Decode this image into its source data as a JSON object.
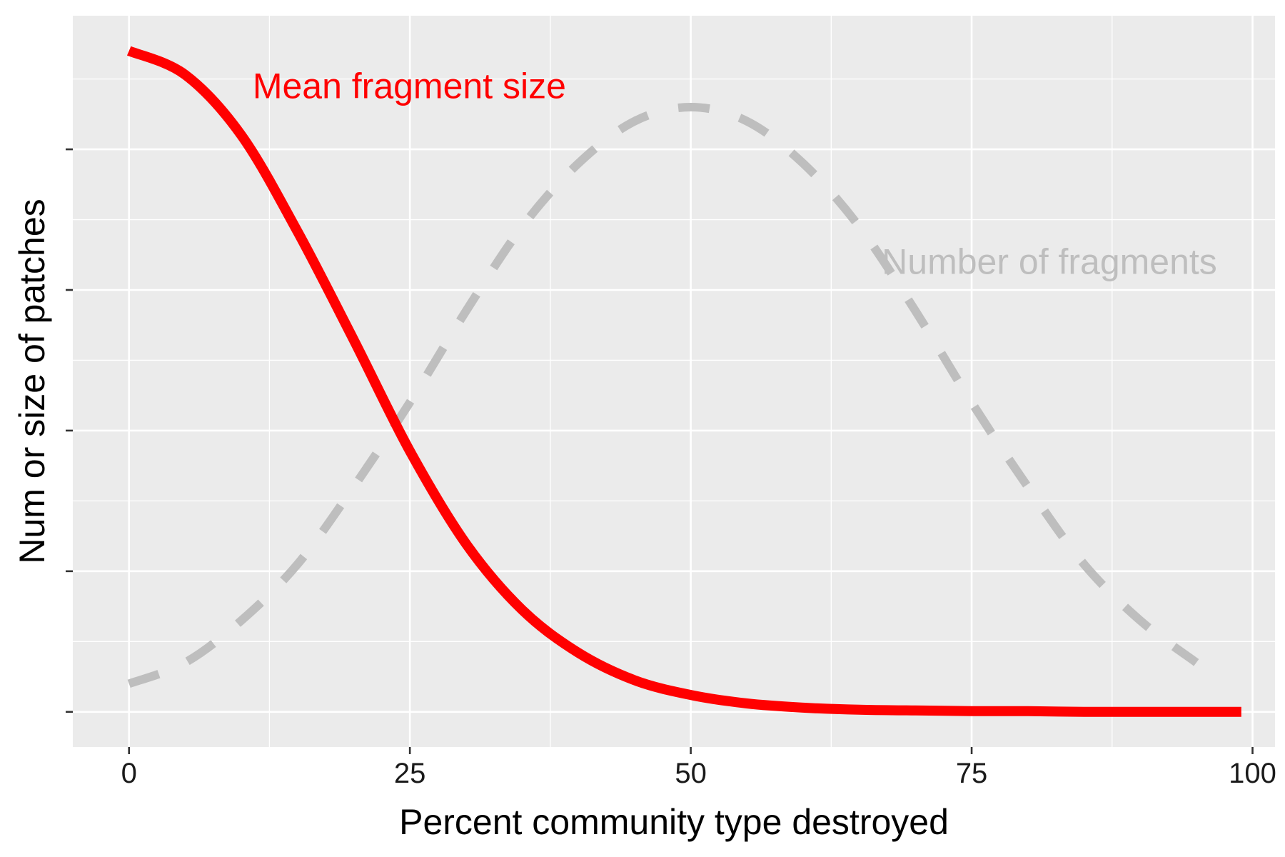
{
  "chart_data": {
    "type": "line",
    "xlabel": "Percent community type destroyed",
    "ylabel": "Num or size of patches",
    "xlim": [
      -5,
      102
    ],
    "ylim": [
      -0.05,
      0.99
    ],
    "x_ticks": [
      0,
      25,
      50,
      75,
      100
    ],
    "y_ticks_labeled": false,
    "grid": true,
    "panel_background": "#ebebeb",
    "series": [
      {
        "name": "Mean fragment size",
        "color": "#ff0000",
        "linestyle": "solid",
        "x": [
          0,
          5,
          10,
          15,
          20,
          25,
          30,
          35,
          40,
          45,
          50,
          55,
          60,
          65,
          70,
          75,
          80,
          85,
          90,
          95,
          99
        ],
        "y": [
          0.94,
          0.906,
          0.82,
          0.683,
          0.529,
          0.371,
          0.239,
          0.145,
          0.084,
          0.045,
          0.024,
          0.012,
          0.006,
          0.003,
          0.002,
          0.001,
          0.001,
          0.0,
          0.0,
          0.0,
          0.0
        ]
      },
      {
        "name": "Number of fragments",
        "color": "#bebebe",
        "linestyle": "dashed",
        "x": [
          0,
          5,
          10,
          15,
          20,
          25,
          30,
          35,
          40,
          45,
          50,
          55,
          60,
          65,
          70,
          75,
          80,
          85,
          90,
          95
        ],
        "y": [
          0.04,
          0.07,
          0.13,
          0.21,
          0.32,
          0.44,
          0.57,
          0.69,
          0.78,
          0.84,
          0.86,
          0.84,
          0.78,
          0.69,
          0.57,
          0.44,
          0.32,
          0.21,
          0.13,
          0.07
        ]
      }
    ],
    "annotations": [
      {
        "text": "Mean fragment size",
        "x": 11,
        "y": 0.89,
        "color": "#ff0000"
      },
      {
        "text": "Number of fragments",
        "x": 67,
        "y": 0.64,
        "color": "#bebebe"
      }
    ]
  }
}
